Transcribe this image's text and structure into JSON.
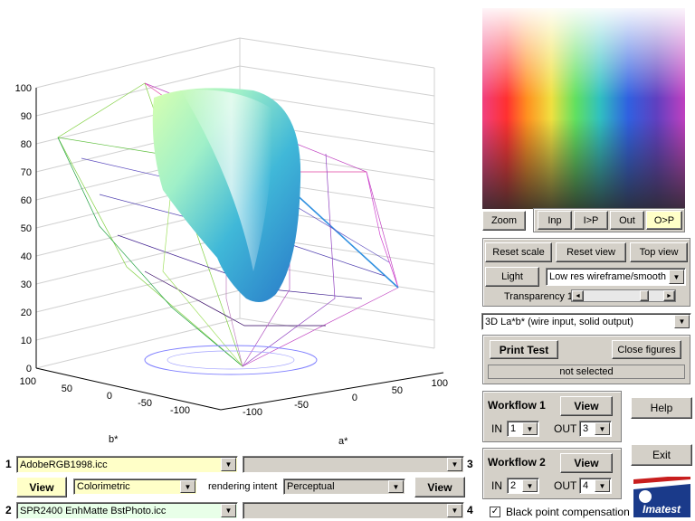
{
  "plot": {
    "z_ticks": [
      "0",
      "10",
      "20",
      "30",
      "40",
      "50",
      "60",
      "70",
      "80",
      "90",
      "100"
    ],
    "b_ticks": [
      "100",
      "50",
      "0",
      "-50",
      "-100"
    ],
    "a_ticks": [
      "-100",
      "-50",
      "0",
      "50",
      "100"
    ],
    "b_label": "b*",
    "a_label": "a*"
  },
  "zoom_label": "Zoom",
  "view_tabs": [
    "Inp",
    "I>P",
    "Out",
    "O>P"
  ],
  "controls": {
    "reset_scale": "Reset scale",
    "reset_view": "Reset view",
    "top_view": "Top view",
    "light": "Light",
    "render_mode": "Low res wireframe/smooth",
    "transparency_label": "Transparency 1",
    "transparency_value": 0.8
  },
  "view_mode": "3D La*b* (wire input, solid output)",
  "print_test": {
    "button": "Print Test",
    "close_figures": "Close figures",
    "status": "not selected"
  },
  "workflow1": {
    "title": "Workflow 1",
    "view": "View",
    "in_label": "IN",
    "in_value": "1",
    "out_label": "OUT",
    "out_value": "3"
  },
  "workflow2": {
    "title": "Workflow 2",
    "view": "View",
    "in_label": "IN",
    "in_value": "2",
    "out_label": "OUT",
    "out_value": "4"
  },
  "help": "Help",
  "exit": "Exit",
  "logo_text": "Imatest",
  "black_point": {
    "label": "Black point compensation",
    "checked": true
  },
  "profiles": {
    "row1_num": "1",
    "row1_value": "AdobeRGB1998.icc",
    "row3_num": "3",
    "row3_value": "",
    "view_left": "View",
    "intent_left": "Colorimetric",
    "rendering_intent_label": "rendering intent",
    "intent_right": "Perceptual",
    "view_right": "View",
    "row2_num": "2",
    "row2_value": "SPR2400 EnhMatte BstPhoto.icc",
    "row4_num": "4",
    "row4_value": ""
  },
  "colors": {
    "panel": "#d4d0c8",
    "yellow_field": "#ffffc8",
    "green_field": "#e8ffe8",
    "logo_blue": "#1a3a8a",
    "logo_red": "#c81e1e"
  }
}
